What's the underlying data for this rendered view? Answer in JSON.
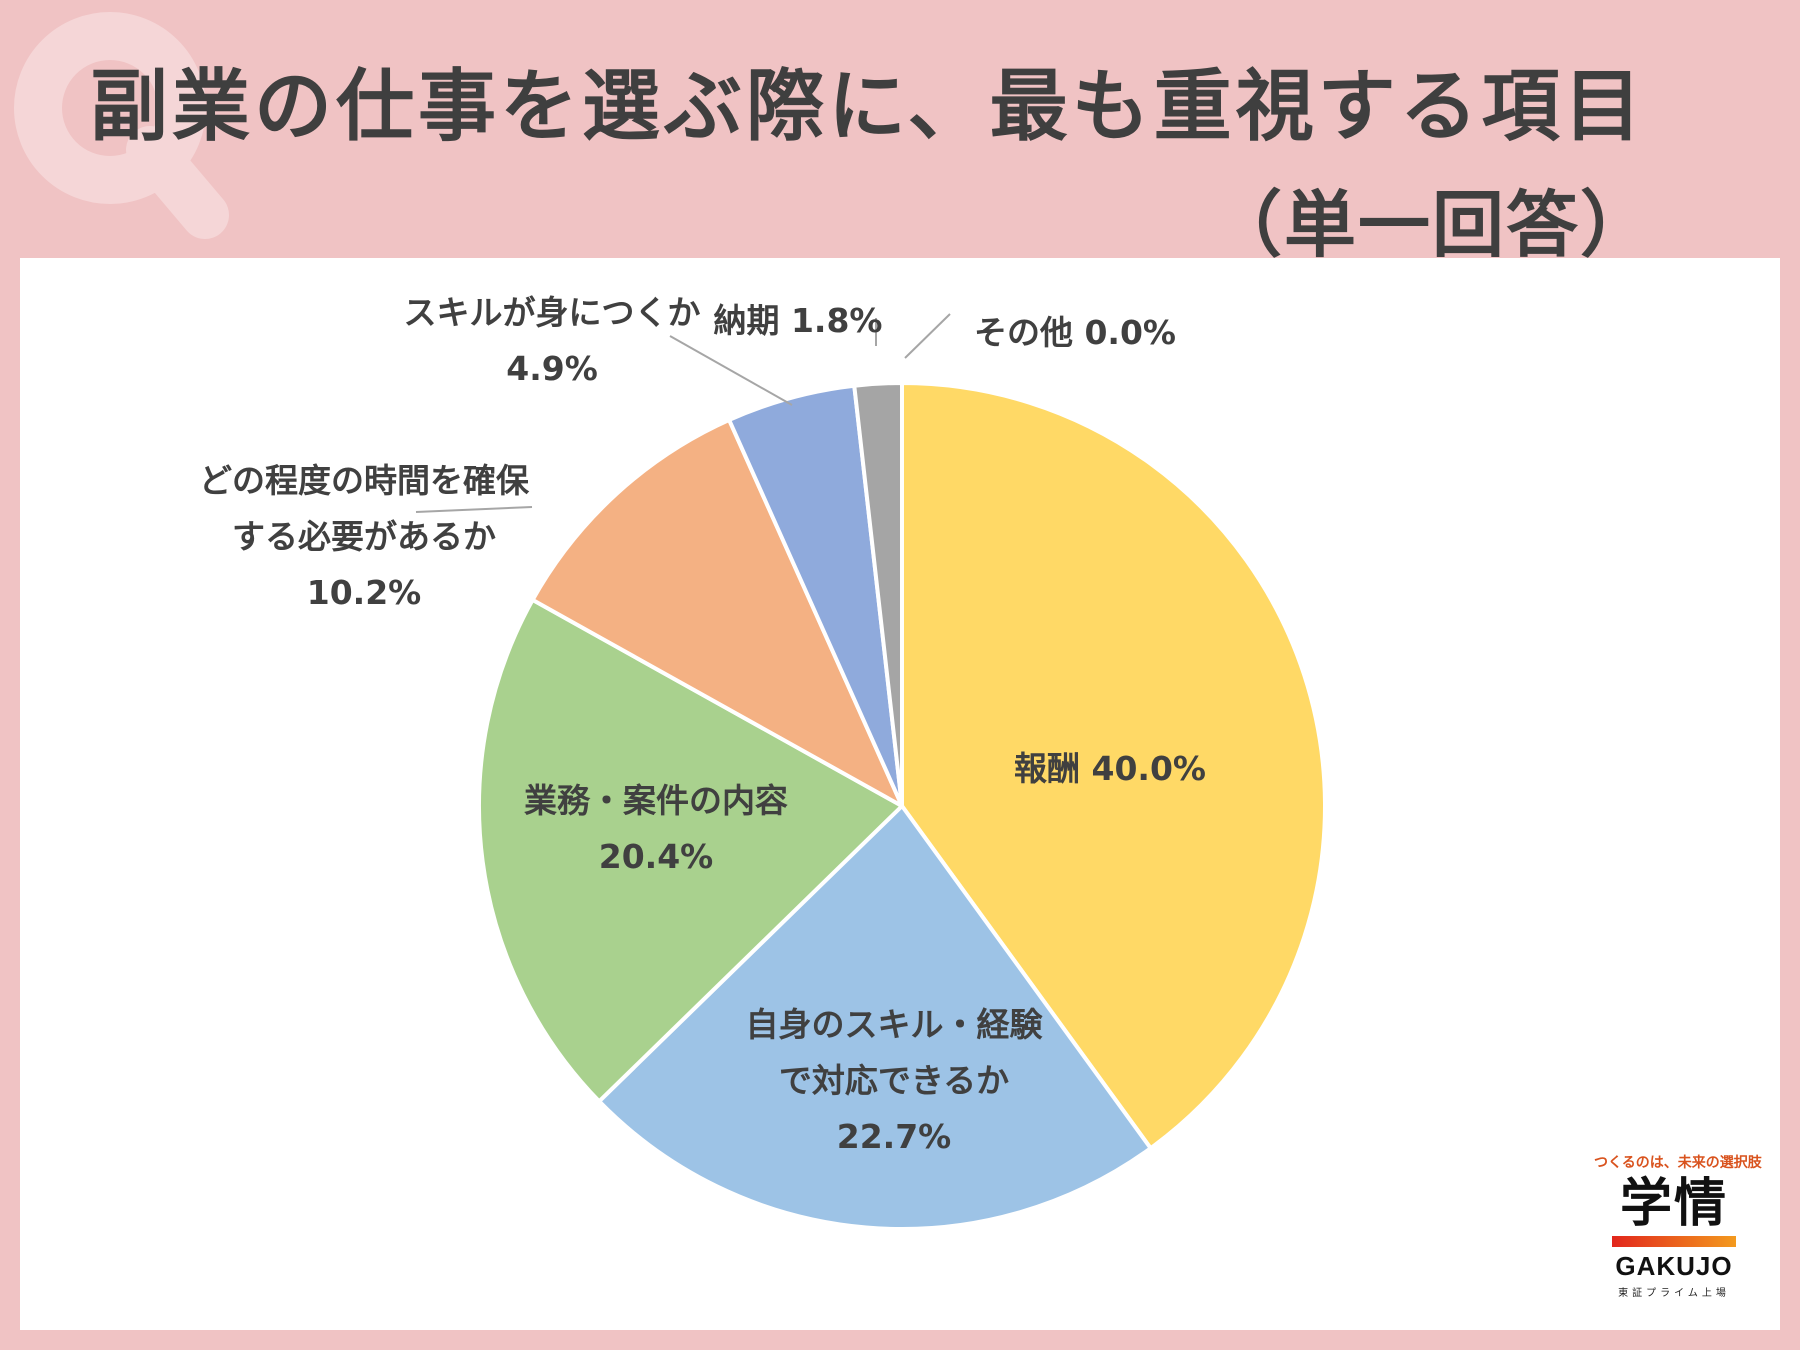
{
  "header": {
    "title": "副業の仕事を選ぶ際に、最も重視する項目",
    "subtitle": "（単一回答）",
    "bg_letter": "Q"
  },
  "chart_data": {
    "type": "pie",
    "title": "副業の仕事を選ぶ際に、最も重視する項目（単一回答）",
    "start_angle": "12 o'clock, clockwise",
    "slices": [
      {
        "label": "報酬",
        "value": 40.0,
        "value_label": "40.0%",
        "color": "#ffd966"
      },
      {
        "label": "自身のスキル・経験で対応できるか",
        "value": 22.7,
        "value_label": "22.7%",
        "color": "#9dc3e6"
      },
      {
        "label": "業務・案件の内容",
        "value": 20.4,
        "value_label": "20.4%",
        "color": "#a9d18e"
      },
      {
        "label": "どの程度の時間を確保する必要があるか",
        "value": 10.2,
        "value_label": "10.2%",
        "color": "#f4b183"
      },
      {
        "label": "スキルが身につくか",
        "value": 4.9,
        "value_label": "4.9%",
        "color": "#8faadc"
      },
      {
        "label": "納期",
        "value": 1.8,
        "value_label": "1.8%",
        "color": "#a5a5a5"
      },
      {
        "label": "その他",
        "value": 0.0,
        "value_label": "0.0%",
        "color": "#c9c9c9"
      }
    ],
    "data_labels": {
      "報酬": [
        "報酬 40.0%"
      ],
      "自身のスキル・経験で対応できるか": [
        "自身のスキル・経験",
        "で対応できるか",
        "22.7%"
      ],
      "業務・案件の内容": [
        "業務・案件の内容",
        "20.4%"
      ],
      "どの程度の時間を確保する必要があるか": [
        "どの程度の時間を確保",
        "する必要があるか",
        "10.2%"
      ],
      "スキルが身につくか": [
        "スキルが身につくか",
        "4.9%"
      ],
      "納期": [
        "納期 1.8%"
      ],
      "その他": [
        "その他 0.0%"
      ]
    }
  },
  "logo": {
    "tagline": "つくるのは、未来の選択肢",
    "mark": "学情",
    "name": "GAKUJO",
    "sub": "東証プライム上場",
    "bar_colors": [
      "#e2261c",
      "#f39a1e"
    ]
  }
}
